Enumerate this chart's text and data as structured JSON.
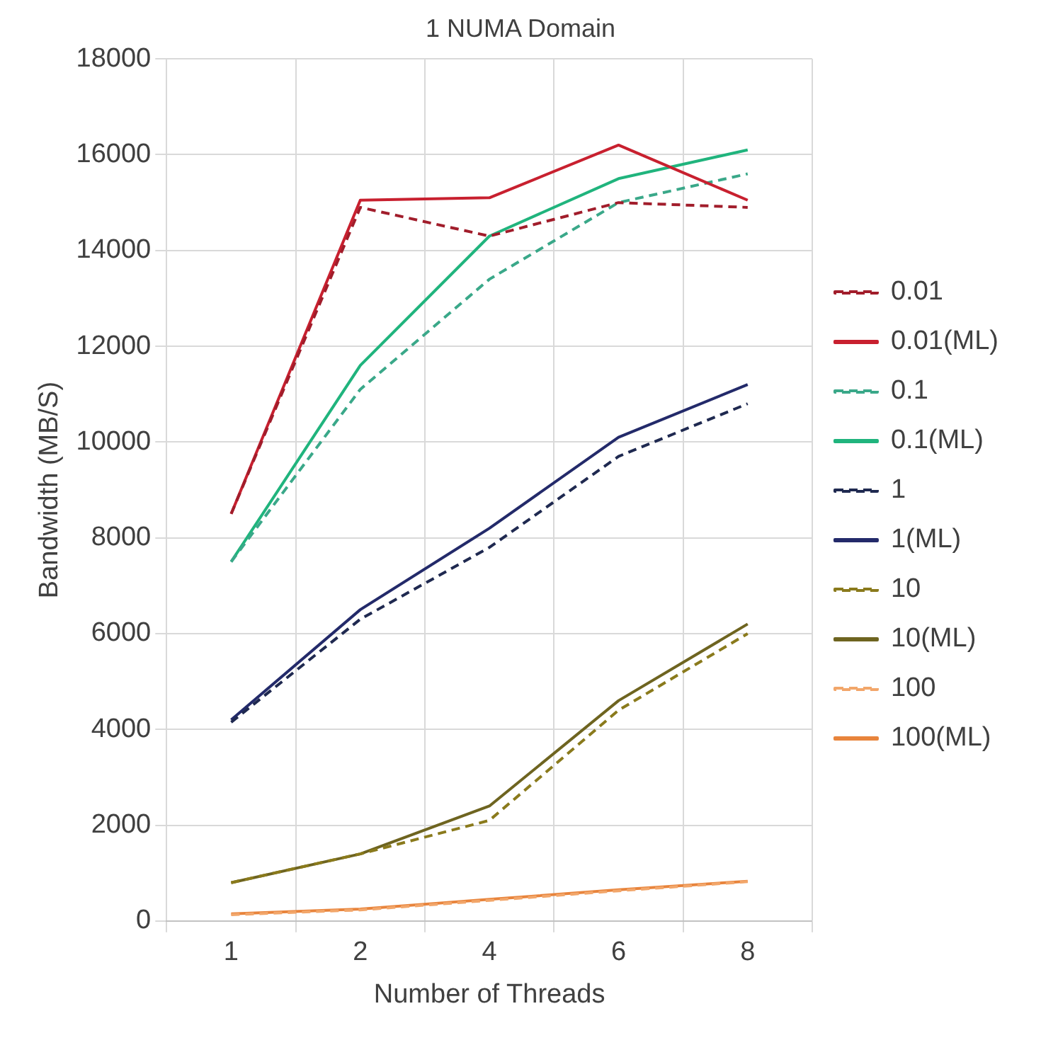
{
  "chart_data": {
    "type": "line",
    "title": "1 NUMA Domain",
    "xlabel": "Number of Threads",
    "ylabel": "Bandwidth (MB/S)",
    "categories": [
      "1",
      "2",
      "4",
      "6",
      "8"
    ],
    "ylim": [
      0,
      18000
    ],
    "yticks": [
      0,
      2000,
      4000,
      6000,
      8000,
      10000,
      12000,
      14000,
      16000,
      18000
    ],
    "grid": true,
    "legend": "right",
    "marker": "none",
    "series": [
      {
        "name": "0.01",
        "color": "#a11d2b",
        "line_style": "dashed",
        "values": [
          8500,
          14900,
          14300,
          15000,
          14900
        ]
      },
      {
        "name": "0.01(ML)",
        "color": "#c8202f",
        "line_style": "solid",
        "values": [
          8500,
          15050,
          15100,
          16200,
          15050
        ]
      },
      {
        "name": "0.1",
        "color": "#3aa889",
        "line_style": "dashed",
        "values": [
          7500,
          11100,
          13400,
          15000,
          15600
        ]
      },
      {
        "name": "0.1(ML)",
        "color": "#20b47d",
        "line_style": "solid",
        "values": [
          7500,
          11600,
          14300,
          15500,
          16100
        ]
      },
      {
        "name": "1",
        "color": "#1f2950",
        "line_style": "dashed",
        "values": [
          4150,
          6300,
          7800,
          9700,
          10800
        ]
      },
      {
        "name": "1(ML)",
        "color": "#232a6a",
        "line_style": "solid",
        "values": [
          4200,
          6500,
          8200,
          10100,
          11200
        ]
      },
      {
        "name": "10",
        "color": "#8a7a1c",
        "line_style": "dashed",
        "values": [
          800,
          1400,
          2100,
          4400,
          6000
        ]
      },
      {
        "name": "10(ML)",
        "color": "#6e6420",
        "line_style": "solid",
        "values": [
          800,
          1400,
          2400,
          4600,
          6200
        ]
      },
      {
        "name": "100",
        "color": "#f2a66a",
        "line_style": "dashed",
        "values": [
          130,
          230,
          430,
          630,
          820
        ]
      },
      {
        "name": "100(ML)",
        "color": "#e8843c",
        "line_style": "solid",
        "values": [
          150,
          250,
          450,
          650,
          830
        ]
      }
    ]
  }
}
